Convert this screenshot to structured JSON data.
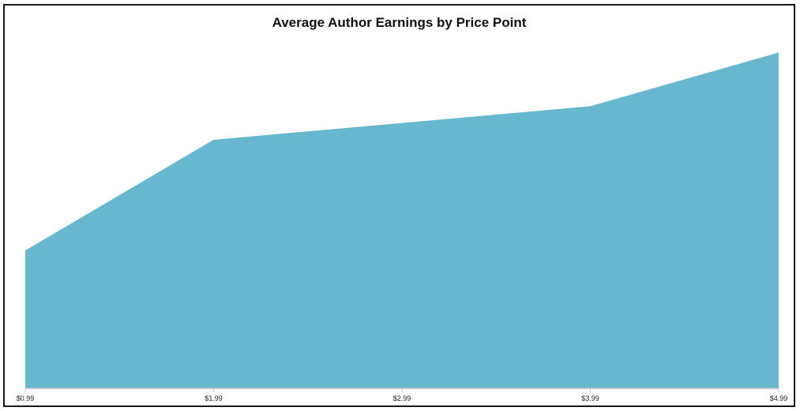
{
  "chart_data": {
    "type": "area",
    "title": "Average Author Earnings by Price Point",
    "categories": [
      "$0.99",
      "$1.99",
      "$2.99",
      "$3.99",
      "$4.99"
    ],
    "series": [
      {
        "values": [
          41,
          74,
          79,
          84,
          100
        ]
      }
    ],
    "xlabel": "",
    "ylabel": "",
    "ylim": [
      0,
      114
    ],
    "grid": false,
    "legend": "none",
    "colors": {
      "area_fill": "#67b7cf",
      "axis": "#c8c8c8",
      "frame": "#1a1a1a"
    }
  }
}
